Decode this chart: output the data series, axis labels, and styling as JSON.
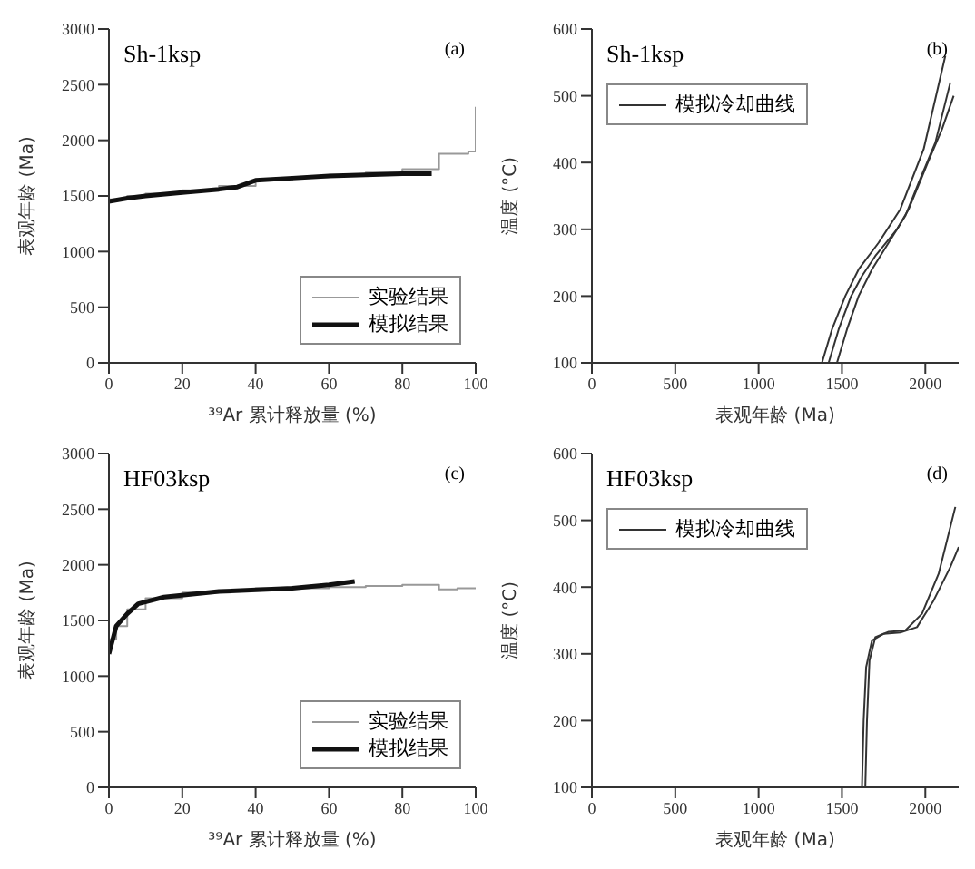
{
  "chart_data": [
    {
      "type": "step",
      "title": "Sh-1ksp",
      "xlabel": "³⁹Ar 累计释放量 (%)",
      "ylabel": "表观年龄 (Ma)",
      "annotations": [
        "(a)"
      ],
      "xlim": [
        0,
        100
      ],
      "xticks": [
        0,
        20,
        40,
        60,
        80,
        100
      ],
      "ylim": [
        0,
        3000
      ],
      "yticks": [
        0,
        500,
        1000,
        1500,
        2000,
        2500,
        3000
      ],
      "legend": "bottom right",
      "marker": "none",
      "line_style": "solid",
      "series": [
        {
          "name": "实验结果",
          "color": "#999999",
          "x": [
            0,
            5,
            10,
            20,
            30,
            40,
            50,
            60,
            70,
            80,
            88,
            90,
            95,
            98,
            100
          ],
          "values": [
            1470,
            1500,
            1520,
            1550,
            1590,
            1640,
            1670,
            1690,
            1710,
            1740,
            1740,
            1880,
            1880,
            1900,
            2300
          ]
        },
        {
          "name": "模拟结果",
          "type": "line",
          "color": "#111111",
          "x": [
            0,
            5,
            10,
            20,
            30,
            35,
            40,
            50,
            60,
            70,
            80,
            88
          ],
          "values": [
            1450,
            1480,
            1500,
            1530,
            1560,
            1580,
            1640,
            1660,
            1680,
            1690,
            1700,
            1700
          ]
        }
      ]
    },
    {
      "type": "line",
      "title": "Sh-1ksp",
      "xlabel": "表观年龄 (Ma)",
      "ylabel": "温度 (°C)",
      "annotations": [
        "(b)"
      ],
      "xlim": [
        0,
        2200
      ],
      "xticks": [
        0,
        500,
        1000,
        1500,
        2000
      ],
      "ylim": [
        100,
        600
      ],
      "yticks": [
        100,
        200,
        300,
        400,
        500,
        600
      ],
      "legend": "top left",
      "marker": "none",
      "line_style": "solid",
      "series": [
        {
          "name": "模拟冷却曲线",
          "color": "#333333",
          "x": [
            1420,
            1480,
            1555,
            1620,
            1700,
            1830,
            1900,
            2015,
            2100,
            2170
          ],
          "values": [
            100,
            150,
            200,
            230,
            260,
            300,
            330,
            400,
            450,
            500
          ]
        },
        {
          "color": "#333333",
          "x": [
            1470,
            1530,
            1600,
            1680,
            1780,
            1880,
            1960,
            2060,
            2150
          ],
          "values": [
            100,
            150,
            200,
            240,
            280,
            320,
            370,
            430,
            520
          ]
        },
        {
          "color": "#333333",
          "x": [
            1380,
            1440,
            1520,
            1600,
            1720,
            1850,
            1990,
            2120
          ],
          "values": [
            100,
            150,
            200,
            240,
            280,
            330,
            420,
            560
          ]
        }
      ]
    },
    {
      "type": "step",
      "title": "HF03ksp",
      "xlabel": "³⁹Ar 累计释放量 (%)",
      "ylabel": "表观年龄 (Ma)",
      "annotations": [
        "(c)"
      ],
      "xlim": [
        0,
        100
      ],
      "xticks": [
        0,
        20,
        40,
        60,
        80,
        100
      ],
      "ylim": [
        0,
        3000
      ],
      "yticks": [
        0,
        500,
        1000,
        1500,
        2000,
        2500,
        3000
      ],
      "legend": "bottom right",
      "marker": "none",
      "line_style": "solid",
      "series": [
        {
          "name": "实验结果",
          "color": "#999999",
          "x": [
            0,
            2,
            5,
            10,
            20,
            30,
            40,
            50,
            60,
            70,
            80,
            90,
            95,
            100
          ],
          "values": [
            1330,
            1450,
            1600,
            1700,
            1750,
            1770,
            1790,
            1790,
            1800,
            1810,
            1820,
            1780,
            1790,
            1790
          ]
        },
        {
          "name": "模拟结果",
          "type": "line",
          "color": "#111111",
          "x": [
            0,
            2,
            5,
            8,
            15,
            30,
            50,
            60,
            67
          ],
          "values": [
            1200,
            1450,
            1560,
            1650,
            1710,
            1760,
            1790,
            1820,
            1850
          ]
        }
      ]
    },
    {
      "type": "line",
      "title": "HF03ksp",
      "xlabel": "表观年龄 (Ma)",
      "ylabel": "温度 (°C)",
      "annotations": [
        "(d)"
      ],
      "xlim": [
        0,
        2200
      ],
      "xticks": [
        0,
        500,
        1000,
        1500,
        2000
      ],
      "ylim": [
        100,
        600
      ],
      "yticks": [
        100,
        200,
        300,
        400,
        500,
        600
      ],
      "legend": "top left",
      "marker": "none",
      "line_style": "solid",
      "series": [
        {
          "name": "模拟冷却曲线",
          "color": "#333333",
          "x": [
            1620,
            1630,
            1645,
            1680,
            1750,
            1850,
            1950,
            2050,
            2150,
            2200
          ],
          "values": [
            100,
            200,
            280,
            320,
            330,
            332,
            340,
            380,
            430,
            460
          ]
        },
        {
          "color": "#333333",
          "x": [
            1640,
            1650,
            1665,
            1700,
            1780,
            1880,
            1980,
            2080,
            2180
          ],
          "values": [
            100,
            200,
            290,
            325,
            333,
            335,
            360,
            420,
            520
          ]
        }
      ]
    }
  ]
}
